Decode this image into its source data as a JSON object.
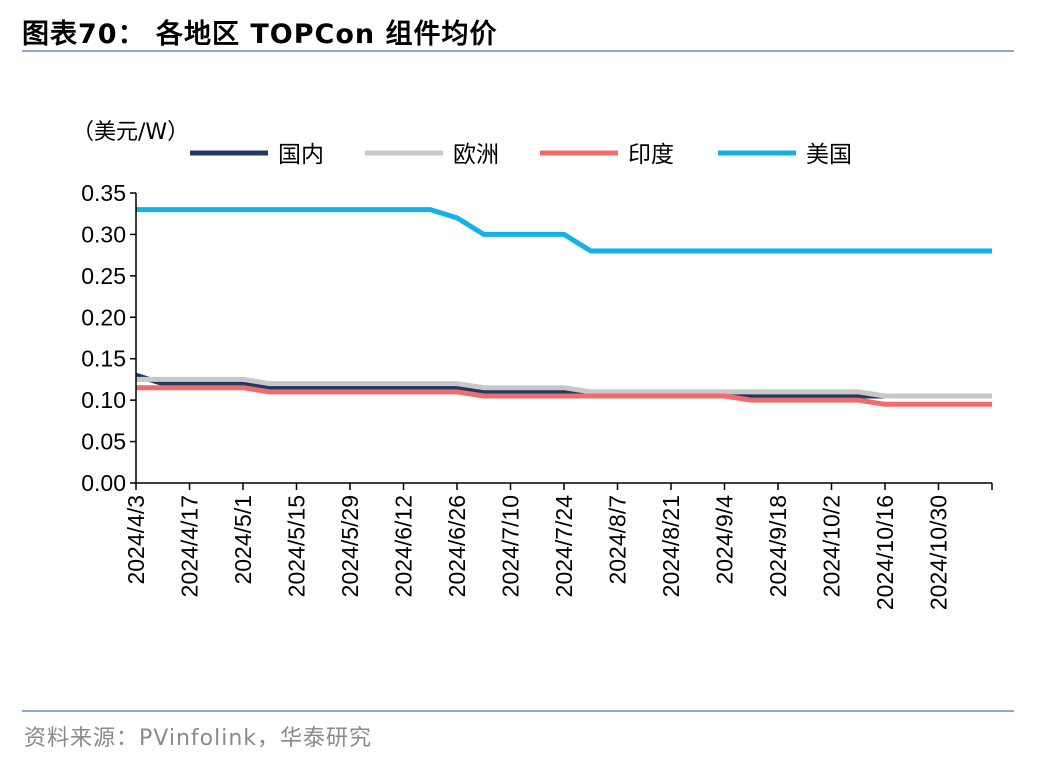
{
  "figure": {
    "title": "图表70： 各地区 TOPCon 组件均价",
    "source": "资料来源：PVinfolink，华泰研究"
  },
  "chart_data": {
    "type": "line",
    "unit_label": "（美元/W）",
    "ylim": [
      0,
      0.35
    ],
    "y_ticks": [
      "0.00",
      "0.05",
      "0.10",
      "0.15",
      "0.20",
      "0.25",
      "0.30",
      "0.35"
    ],
    "x_tick_labels": [
      "2024/4/3",
      "2024/4/17",
      "2024/5/1",
      "2024/5/15",
      "2024/5/29",
      "2024/6/12",
      "2024/6/26",
      "2024/7/10",
      "2024/7/24",
      "2024/8/7",
      "2024/8/21",
      "2024/9/4",
      "2024/9/18",
      "2024/10/2",
      "2024/10/16",
      "2024/10/30"
    ],
    "x": [
      "2024/4/3",
      "2024/4/10",
      "2024/4/17",
      "2024/4/24",
      "2024/5/1",
      "2024/5/8",
      "2024/5/15",
      "2024/5/22",
      "2024/5/29",
      "2024/6/5",
      "2024/6/12",
      "2024/6/19",
      "2024/6/26",
      "2024/7/3",
      "2024/7/10",
      "2024/7/17",
      "2024/7/24",
      "2024/7/31",
      "2024/8/7",
      "2024/8/14",
      "2024/8/21",
      "2024/8/28",
      "2024/9/4",
      "2024/9/11",
      "2024/9/18",
      "2024/9/25",
      "2024/10/2",
      "2024/10/9",
      "2024/10/16",
      "2024/10/23",
      "2024/10/30",
      "2024/11/6"
    ],
    "legend_position": "top",
    "grid": false,
    "series": [
      {
        "name": "国内",
        "color": "#1f3864",
        "values": [
          0.13,
          0.12,
          0.12,
          0.12,
          0.12,
          0.115,
          0.115,
          0.115,
          0.115,
          0.115,
          0.115,
          0.115,
          0.115,
          0.11,
          0.11,
          0.11,
          0.11,
          0.105,
          0.105,
          0.105,
          0.105,
          0.105,
          0.105,
          0.105,
          0.105,
          0.105,
          0.105,
          0.105,
          0.105,
          0.105,
          0.105,
          0.105
        ]
      },
      {
        "name": "欧洲",
        "color": "#c8c8c8",
        "values": [
          0.125,
          0.125,
          0.125,
          0.125,
          0.125,
          0.12,
          0.12,
          0.12,
          0.12,
          0.12,
          0.12,
          0.12,
          0.12,
          0.115,
          0.115,
          0.115,
          0.115,
          0.11,
          0.11,
          0.11,
          0.11,
          0.11,
          0.11,
          0.11,
          0.11,
          0.11,
          0.11,
          0.11,
          0.105,
          0.105,
          0.105,
          0.105
        ]
      },
      {
        "name": "印度",
        "color": "#f16b6b",
        "values": [
          0.115,
          0.115,
          0.115,
          0.115,
          0.115,
          0.11,
          0.11,
          0.11,
          0.11,
          0.11,
          0.11,
          0.11,
          0.11,
          0.105,
          0.105,
          0.105,
          0.105,
          0.105,
          0.105,
          0.105,
          0.105,
          0.105,
          0.105,
          0.1,
          0.1,
          0.1,
          0.1,
          0.1,
          0.095,
          0.095,
          0.095,
          0.095
        ]
      },
      {
        "name": "美国",
        "color": "#14b0e6",
        "values": [
          0.33,
          0.33,
          0.33,
          0.33,
          0.33,
          0.33,
          0.33,
          0.33,
          0.33,
          0.33,
          0.33,
          0.33,
          0.32,
          0.3,
          0.3,
          0.3,
          0.3,
          0.28,
          0.28,
          0.28,
          0.28,
          0.28,
          0.28,
          0.28,
          0.28,
          0.28,
          0.28,
          0.28,
          0.28,
          0.28,
          0.28,
          0.28
        ]
      }
    ]
  }
}
